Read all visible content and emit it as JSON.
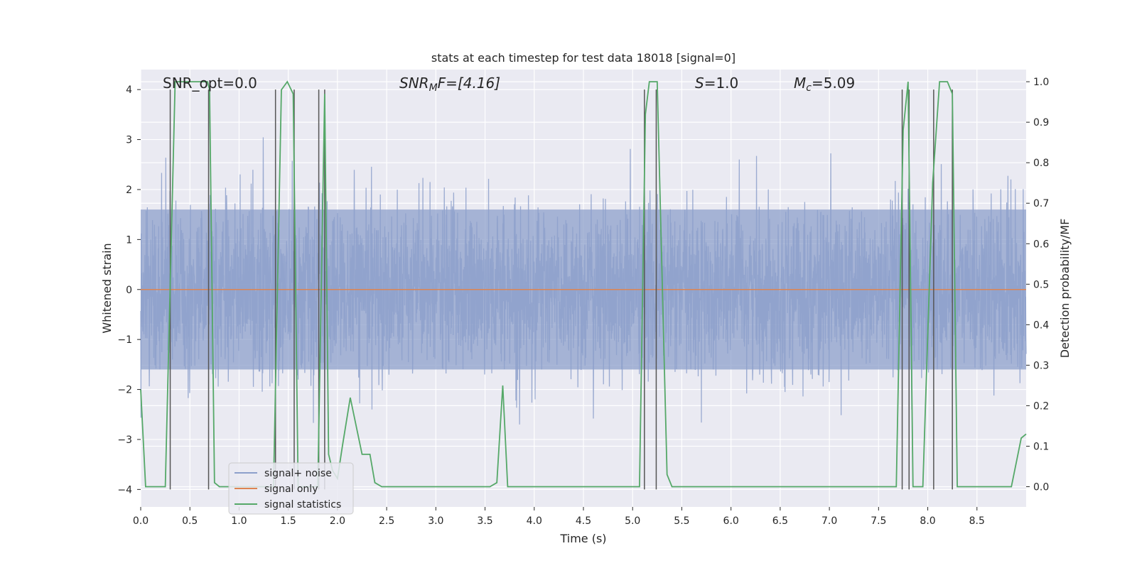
{
  "chart_data": {
    "type": "line",
    "title": "stats at each timestep for test data 18018 [signal=0]",
    "xlabel": "Time (s)",
    "ylabel_left": "Whitened strain",
    "ylabel_right": "Detection probability/MF",
    "xlim": [
      0.0,
      9.0
    ],
    "ylim_left": [
      -4.35,
      4.4
    ],
    "ylim_right": [
      -0.05,
      1.03
    ],
    "x_ticks": [
      "0.0",
      "0.5",
      "1.0",
      "1.5",
      "2.0",
      "2.5",
      "3.0",
      "3.5",
      "4.0",
      "4.5",
      "5.0",
      "5.5",
      "6.0",
      "6.5",
      "7.0",
      "7.5",
      "8.0",
      "8.5"
    ],
    "y_ticks_left": [
      "4",
      "3",
      "2",
      "1",
      "0",
      "−1",
      "−2",
      "−3",
      "−4"
    ],
    "y_ticks_right": [
      "1.0",
      "0.9",
      "0.8",
      "0.7",
      "0.6",
      "0.5",
      "0.4",
      "0.3",
      "0.2",
      "0.1",
      "0.0"
    ],
    "annotations": {
      "snr_opt": "SNR_opt=0.0",
      "snr_mf_sym": "SNR",
      "snr_mf_sub": "M",
      "snr_mf_rest": "F=[4.16]",
      "s_sym": "S",
      "s_rest": "=1.0",
      "mc_sym": "M",
      "mc_sub": "c",
      "mc_rest": "=5.09"
    },
    "grid": true,
    "legend_position": "lower-left",
    "series": [
      {
        "name": "signal+ noise",
        "color": "#8da0cb",
        "kind": "noise",
        "core_sd": 0.8,
        "peak_max": 3.9,
        "trough_min": -3.9
      },
      {
        "name": "signal only",
        "color": "#dd8452",
        "kind": "flat",
        "y": 0.0
      },
      {
        "name": "signal statistics",
        "color": "#55a868",
        "kind": "line",
        "x": [
          0.0,
          0.05,
          0.25,
          0.35,
          0.4,
          0.68,
          0.7,
          0.75,
          0.8,
          0.95,
          1.25,
          1.35,
          1.43,
          1.49,
          1.55,
          1.6,
          1.8,
          1.87,
          1.91,
          1.95,
          2.0,
          2.05,
          2.13,
          2.25,
          2.33,
          2.38,
          2.45,
          3.15,
          3.25,
          3.55,
          3.62,
          3.68,
          3.73,
          3.8,
          5.07,
          5.13,
          5.17,
          5.25,
          5.35,
          5.4,
          7.68,
          7.75,
          7.8,
          7.85,
          7.95,
          8.05,
          8.12,
          8.2,
          8.25,
          8.3,
          8.7,
          8.85,
          8.95,
          9.0
        ],
        "y": [
          0.24,
          0.0,
          0.0,
          1.0,
          1.0,
          1.0,
          0.98,
          0.01,
          0.0,
          0.0,
          0.0,
          0.0,
          0.98,
          1.0,
          0.97,
          0.0,
          0.0,
          0.97,
          0.08,
          0.04,
          0.02,
          0.1,
          0.22,
          0.08,
          0.08,
          0.01,
          0.0,
          0.0,
          0.0,
          0.0,
          0.01,
          0.25,
          0.0,
          0.0,
          0.0,
          0.92,
          1.0,
          1.0,
          0.03,
          0.0,
          0.0,
          0.88,
          1.0,
          0.0,
          0.0,
          0.75,
          1.0,
          1.0,
          0.97,
          0.0,
          0.0,
          0.0,
          0.12,
          0.13
        ]
      }
    ],
    "vlines": {
      "color": "#555555",
      "x": [
        0.3,
        0.69,
        1.37,
        1.56,
        1.81,
        1.87,
        5.12,
        5.24,
        7.74,
        7.81,
        8.06,
        8.25
      ]
    }
  }
}
